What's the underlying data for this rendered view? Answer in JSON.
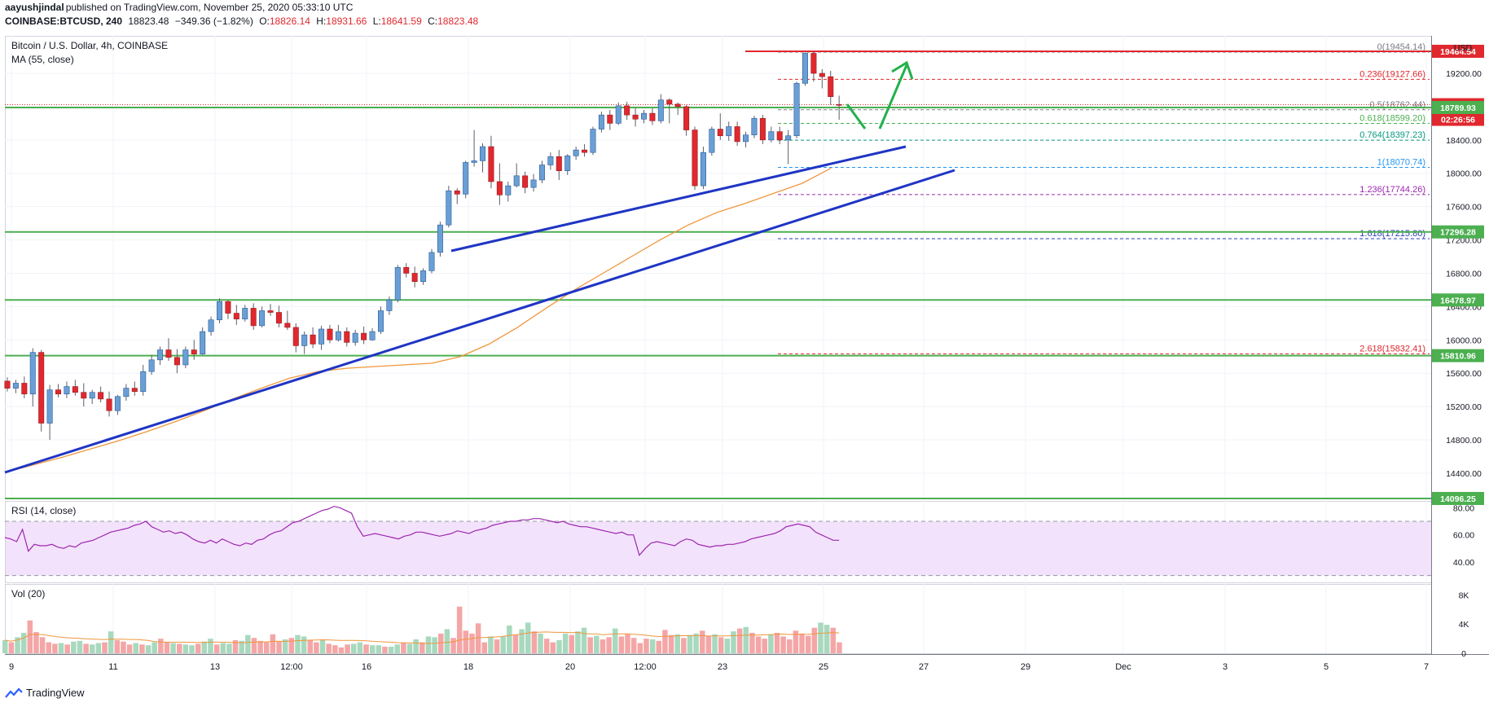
{
  "header": {
    "author": "aayushjindal",
    "published_text": "published on TradingView.com, November 25, 2020 05:33:10 UTC",
    "symbol": "COINBASE:BTCUSD, 240",
    "last": "18823.48",
    "change": "−349.36 (−1.82%)",
    "o_label": "O:",
    "o_val": "18826.14",
    "h_label": "H:",
    "h_val": "18931.66",
    "l_label": "L:",
    "l_val": "18641.59",
    "c_label": "C:",
    "c_val": "18823.48"
  },
  "main_pane": {
    "title": "Bitcoin / U.S. Dollar, 4h, COINBASE",
    "ma_label": "MA (55, close)",
    "currency": "USD"
  },
  "rsi_pane": {
    "title": "RSI (14, close)"
  },
  "vol_pane": {
    "title": "Vol (20)"
  },
  "footer": {
    "brand": "TradingView"
  },
  "colors": {
    "up": "#6a9fd5",
    "down": "#e0282e",
    "ma": "#f0963c",
    "trend": "#1f35c4",
    "support": "#4caf50",
    "arrow": "#21b14b",
    "rsi": "#9c27b0",
    "rsi_band": "#f3e2fb",
    "vol_up": "#a8d9be",
    "vol_down": "#f4a6a6",
    "axis_bg": "#ffffff"
  },
  "chart_data": [
    {
      "type": "candlestick",
      "title": "Bitcoin / U.S. Dollar, 4h, COINBASE",
      "ylim": [
        14096,
        19650
      ],
      "y_ticks": [
        14400,
        14800,
        15200,
        15600,
        16000,
        16400,
        16800,
        17200,
        17600,
        18000,
        18400,
        18800,
        19200
      ],
      "x_ticks": [
        "9",
        "11",
        "13",
        "12:00",
        "16",
        "18",
        "20",
        "12:00",
        "23",
        "25",
        "27",
        "29",
        "Dec",
        "3",
        "5",
        "7"
      ],
      "candles": [
        [
          15505,
          15550,
          15380,
          15420
        ],
        [
          15420,
          15520,
          15360,
          15480
        ],
        [
          15480,
          15560,
          15300,
          15350
        ],
        [
          15350,
          15900,
          15200,
          15850
        ],
        [
          15850,
          15880,
          14900,
          15000
        ],
        [
          15000,
          15460,
          14800,
          15400
        ],
        [
          15400,
          15470,
          15310,
          15350
        ],
        [
          15350,
          15500,
          15300,
          15440
        ],
        [
          15440,
          15520,
          15330,
          15370
        ],
        [
          15370,
          15480,
          15200,
          15300
        ],
        [
          15300,
          15400,
          15230,
          15370
        ],
        [
          15370,
          15440,
          15250,
          15290
        ],
        [
          15290,
          15380,
          15080,
          15150
        ],
        [
          15150,
          15340,
          15100,
          15320
        ],
        [
          15320,
          15470,
          15270,
          15420
        ],
        [
          15420,
          15500,
          15330,
          15380
        ],
        [
          15380,
          15700,
          15330,
          15620
        ],
        [
          15620,
          15820,
          15580,
          15760
        ],
        [
          15760,
          15920,
          15700,
          15880
        ],
        [
          15880,
          16020,
          15750,
          15790
        ],
        [
          15790,
          15890,
          15600,
          15700
        ],
        [
          15700,
          15920,
          15660,
          15880
        ],
        [
          15880,
          16000,
          15760,
          15830
        ],
        [
          15830,
          16150,
          15820,
          16100
        ],
        [
          16100,
          16280,
          16050,
          16240
        ],
        [
          16240,
          16500,
          16200,
          16460
        ],
        [
          16460,
          16480,
          16250,
          16320
        ],
        [
          16320,
          16420,
          16180,
          16250
        ],
        [
          16250,
          16420,
          16220,
          16380
        ],
        [
          16380,
          16440,
          16120,
          16170
        ],
        [
          16170,
          16400,
          16150,
          16350
        ],
        [
          16350,
          16430,
          16290,
          16330
        ],
        [
          16330,
          16410,
          16150,
          16200
        ],
        [
          16200,
          16350,
          16120,
          16150
        ],
        [
          16150,
          16200,
          15850,
          15930
        ],
        [
          15930,
          16100,
          15830,
          16060
        ],
        [
          16060,
          16150,
          15900,
          15950
        ],
        [
          15950,
          16170,
          15880,
          16130
        ],
        [
          16130,
          16180,
          15960,
          16000
        ],
        [
          16000,
          16180,
          15980,
          16100
        ],
        [
          16100,
          16150,
          15920,
          15970
        ],
        [
          15970,
          16120,
          15930,
          16080
        ],
        [
          16080,
          16160,
          15950,
          16000
        ],
        [
          16000,
          16140,
          15990,
          16100
        ],
        [
          16100,
          16400,
          16070,
          16350
        ],
        [
          16350,
          16520,
          16300,
          16480
        ],
        [
          16480,
          16900,
          16450,
          16870
        ],
        [
          16870,
          16920,
          16750,
          16800
        ],
        [
          16800,
          16880,
          16630,
          16700
        ],
        [
          16700,
          16860,
          16660,
          16830
        ],
        [
          16830,
          17090,
          16800,
          17050
        ],
        [
          17050,
          17420,
          17000,
          17380
        ],
        [
          17380,
          17850,
          17350,
          17790
        ],
        [
          17790,
          17820,
          17630,
          17750
        ],
        [
          17750,
          18150,
          17700,
          18130
        ],
        [
          18130,
          18520,
          18080,
          18150
        ],
        [
          18150,
          18360,
          18010,
          18320
        ],
        [
          18320,
          18450,
          17820,
          17900
        ],
        [
          17900,
          18120,
          17620,
          17740
        ],
        [
          17740,
          17900,
          17660,
          17850
        ],
        [
          17850,
          18120,
          17830,
          17970
        ],
        [
          17970,
          18020,
          17760,
          17830
        ],
        [
          17830,
          17990,
          17780,
          17920
        ],
        [
          17920,
          18150,
          17880,
          18100
        ],
        [
          18100,
          18250,
          18040,
          18200
        ],
        [
          18200,
          18280,
          17920,
          18030
        ],
        [
          18030,
          18230,
          17980,
          18210
        ],
        [
          18210,
          18320,
          18160,
          18280
        ],
        [
          18280,
          18350,
          18200,
          18250
        ],
        [
          18250,
          18560,
          18220,
          18530
        ],
        [
          18530,
          18740,
          18490,
          18700
        ],
        [
          18700,
          18760,
          18520,
          18600
        ],
        [
          18600,
          18850,
          18580,
          18810
        ],
        [
          18810,
          18860,
          18640,
          18700
        ],
        [
          18700,
          18780,
          18560,
          18650
        ],
        [
          18650,
          18760,
          18600,
          18720
        ],
        [
          18720,
          18780,
          18580,
          18630
        ],
        [
          18630,
          18950,
          18600,
          18880
        ],
        [
          18880,
          18900,
          18600,
          18830
        ],
        [
          18830,
          18850,
          18700,
          18800
        ],
        [
          18800,
          18820,
          18450,
          18520
        ],
        [
          18520,
          18560,
          17800,
          17850
        ],
        [
          17850,
          18320,
          17810,
          18250
        ],
        [
          18250,
          18560,
          18210,
          18530
        ],
        [
          18530,
          18720,
          18400,
          18450
        ],
        [
          18450,
          18620,
          18390,
          18560
        ],
        [
          18560,
          18620,
          18330,
          18380
        ],
        [
          18380,
          18500,
          18310,
          18460
        ],
        [
          18460,
          18690,
          18420,
          18660
        ],
        [
          18660,
          18700,
          18350,
          18400
        ],
        [
          18400,
          18560,
          18370,
          18500
        ],
        [
          18500,
          18560,
          18350,
          18400
        ],
        [
          18400,
          18520,
          18110,
          18450
        ],
        [
          18450,
          19100,
          18420,
          19080
        ],
        [
          19080,
          19450,
          19050,
          19440
        ],
        [
          19440,
          19450,
          19100,
          19200
        ],
        [
          19200,
          19250,
          19020,
          19160
        ],
        [
          19160,
          19230,
          18820,
          18920
        ],
        [
          18826,
          18932,
          18642,
          18823
        ]
      ],
      "ma55": [
        14410,
        14500,
        14590,
        14690,
        14790,
        14900,
        15020,
        15150,
        15290,
        15420,
        15540,
        15620,
        15660,
        15680,
        15700,
        15720,
        15800,
        15950,
        16150,
        16380,
        16600,
        16800,
        17000,
        17200,
        17380,
        17530,
        17640,
        17760,
        17880,
        18060
      ],
      "trendlines": [
        {
          "from": [
            "09 00:00",
            14450
          ],
          "to": [
            "26 12:00",
            18060
          ]
        },
        {
          "from": [
            "17 20:00",
            17150
          ],
          "to": [
            "25 16:00",
            18380
          ]
        }
      ],
      "horizontal_levels": [
        19464.54,
        18789.93,
        17296.28,
        16478.97,
        15810.96,
        14096.25
      ],
      "fib_levels": [
        {
          "label": "0(19454.14)",
          "value": 19454.14
        },
        {
          "label": "0.236(19127.66)",
          "value": 19127.66
        },
        {
          "label": "0.5(18762.44)",
          "value": 18762.44
        },
        {
          "label": "0.618(18599.20)",
          "value": 18599.2
        },
        {
          "label": "0.764(18397.23)",
          "value": 18397.23
        },
        {
          "label": "1(18070.74)",
          "value": 18070.74
        },
        {
          "label": "1.236(17744.26)",
          "value": 17744.26
        },
        {
          "label": "1.618(17215.80)",
          "value": 17215.8
        },
        {
          "label": "2.618(15832.41)",
          "value": 15832.41
        }
      ],
      "price_labels": [
        {
          "text": "19464.54",
          "value": 19464.54,
          "kind": "red"
        },
        {
          "text": "18823.48",
          "value": 18823.48,
          "kind": "red"
        },
        {
          "text": "02:26:56",
          "value": 18823.48,
          "kind": "red-timer"
        },
        {
          "text": "18789.93",
          "value": 18789.93,
          "kind": "green"
        },
        {
          "text": "17296.28",
          "value": 17296.28,
          "kind": "green"
        },
        {
          "text": "16478.97",
          "value": 16478.97,
          "kind": "green"
        },
        {
          "text": "15810.96",
          "value": 15810.96,
          "kind": "green"
        },
        {
          "text": "14096.25",
          "value": 14096.25,
          "kind": "green"
        }
      ]
    },
    {
      "type": "line",
      "title": "RSI (14, close)",
      "ylim": [
        25,
        85
      ],
      "y_ticks": [
        40,
        60,
        80
      ],
      "band": [
        30,
        70
      ],
      "values": [
        58,
        57,
        55,
        64,
        48,
        53,
        52,
        52,
        53,
        51,
        50,
        52,
        51,
        54,
        55,
        56,
        58,
        60,
        62,
        63,
        64,
        65,
        67,
        68,
        70,
        66,
        64,
        62,
        63,
        61,
        62,
        60,
        57,
        55,
        54,
        56,
        54,
        57,
        55,
        53,
        52,
        54,
        53,
        56,
        57,
        60,
        62,
        63,
        66,
        69,
        70,
        72,
        74,
        76,
        78,
        79,
        81,
        80,
        78,
        76,
        66,
        59,
        60,
        61,
        60,
        59,
        58,
        57,
        59,
        60,
        62,
        62,
        61,
        60,
        59,
        60,
        61,
        63,
        62,
        61,
        63,
        64,
        65,
        67,
        68,
        69,
        70,
        70,
        71,
        71,
        72,
        72,
        71,
        70,
        69,
        70,
        68,
        67,
        66,
        66,
        65,
        64,
        63,
        62,
        61,
        62,
        60,
        60,
        45,
        50,
        54,
        55,
        54,
        53,
        52,
        55,
        57,
        56,
        53,
        52,
        51,
        52,
        52,
        53,
        53,
        54,
        55,
        57,
        58,
        59,
        60,
        61,
        63,
        66,
        67,
        68,
        67,
        66,
        62,
        60,
        58,
        56,
        56
      ]
    },
    {
      "type": "bar",
      "title": "Vol (20)",
      "ylim": [
        0,
        9500
      ],
      "y_ticks": [
        0,
        4000,
        8000
      ],
      "values": [
        1800,
        1500,
        2200,
        2800,
        4500,
        2900,
        2200,
        1500,
        1300,
        1400,
        1200,
        1600,
        1700,
        1300,
        1200,
        1400,
        1500,
        3000,
        1800,
        1600,
        1200,
        1400,
        1200,
        1100,
        1500,
        2000,
        1500,
        1400,
        1300,
        1200,
        1100,
        1300,
        1600,
        2000,
        1200,
        1400,
        1300,
        1800,
        1700,
        2500,
        2100,
        1700,
        1500,
        2600,
        1600,
        1900,
        2100,
        2500,
        2300,
        1800,
        1500,
        1800,
        1300,
        1100,
        800,
        1200,
        1300,
        1500,
        1200,
        1100,
        1100,
        900,
        900,
        1200,
        1400,
        1300,
        1900,
        1500,
        2300,
        2200,
        2700,
        3300,
        2100,
        6400,
        3100,
        2700,
        4100,
        1500,
        2300,
        1900,
        2300,
        3800,
        2500,
        3300,
        4200,
        3000,
        2700,
        2000,
        1500,
        1800,
        2700,
        2500,
        3000,
        3500,
        2200,
        2400,
        1900,
        2200,
        3400,
        2300,
        2600,
        2100,
        1400,
        2000,
        1900,
        1700,
        3200,
        2500,
        2600,
        2100,
        2500,
        2700,
        3100,
        2400,
        2600,
        2200,
        2000,
        3000,
        3400,
        3600,
        2800,
        2300,
        2000,
        2600,
        2800,
        2300,
        1900,
        3100,
        2700,
        2400,
        3500,
        4200,
        3900,
        3500,
        1500
      ]
    }
  ]
}
